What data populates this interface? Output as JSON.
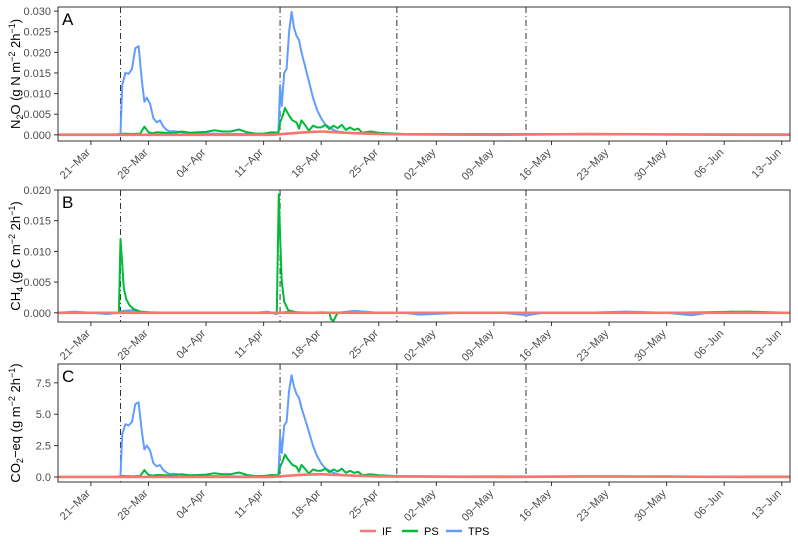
{
  "chart_data": [
    {
      "type": "line",
      "panel_label": "A",
      "ylabel_parts": [
        "N",
        "2",
        "O (g N m",
        "−2",
        " 2h",
        "−1",
        ")"
      ],
      "ylim": [
        -0.0015,
        0.031
      ],
      "yticks": [
        "0.000",
        "0.005",
        "0.010",
        "0.015",
        "0.020",
        "0.025",
        "0.030"
      ],
      "ytick_values": [
        0,
        0.005,
        0.01,
        0.015,
        0.02,
        0.025,
        0.03
      ],
      "xlim_days": [
        -4,
        85
      ],
      "xticks": [
        "21−Mar",
        "28−Mar",
        "04−Apr",
        "11−Apr",
        "18−Apr",
        "25−Apr",
        "02−May",
        "09−May",
        "16−May",
        "23−May",
        "30−May",
        "06−Jun",
        "13−Jun"
      ],
      "vlines_days": [
        3.6,
        23.0,
        37.2,
        52.9
      ],
      "series": [
        {
          "name": "TPS",
          "color": "#619CFF",
          "x": [
            3.6,
            3.8,
            4.2,
            4.6,
            5,
            5.4,
            5.8,
            6.2,
            6.5,
            6.8,
            7.2,
            7.6,
            8.0,
            8.4,
            8.8,
            9.2,
            9.6,
            10,
            11,
            12,
            13,
            14,
            15,
            16,
            17,
            18,
            19,
            20,
            21,
            22,
            22.8,
            23.0,
            23.2,
            23.5,
            23.8,
            24.1,
            24.4,
            24.7,
            25.0,
            25.3,
            25.6,
            26.0,
            26.5,
            27,
            27.5,
            28,
            28.5,
            29,
            29.5,
            30,
            31,
            32,
            33,
            34,
            35,
            36,
            37,
            38,
            40,
            45,
            50,
            55,
            60,
            65,
            70,
            75,
            80,
            85
          ],
          "y": [
            0.0002,
            0.012,
            0.015,
            0.0148,
            0.016,
            0.021,
            0.0215,
            0.013,
            0.008,
            0.009,
            0.0075,
            0.004,
            0.003,
            0.0035,
            0.002,
            0.0012,
            0.0008,
            0.0009,
            0.0006,
            0.0004,
            0.0003,
            0.0003,
            0.0003,
            0.0002,
            0.0002,
            0.0002,
            0.0002,
            0.0002,
            0.0002,
            0.0002,
            0.0003,
            0.012,
            0.007,
            0.015,
            0.016,
            0.025,
            0.0298,
            0.026,
            0.024,
            0.023,
            0.02,
            0.017,
            0.013,
            0.009,
            0.006,
            0.004,
            0.0025,
            0.0018,
            0.0012,
            0.0008,
            0.0005,
            0.0004,
            0.0004,
            0.0003,
            0.0003,
            0.0002,
            0.0002,
            0.0002,
            0.0002,
            0.0002,
            0.0002,
            0.0002,
            0.0002,
            0.0002,
            0.0001,
            0.0001,
            0.0001,
            0.0001
          ]
        },
        {
          "name": "PS",
          "color": "#00BA38",
          "x": [
            -4,
            3,
            3.6,
            4,
            5,
            6,
            6.5,
            7,
            7.5,
            8,
            9,
            10,
            11,
            12,
            13,
            14,
            15,
            16,
            17,
            18,
            19,
            20,
            21,
            22,
            22.8,
            23.0,
            23.3,
            23.6,
            24,
            24.5,
            25,
            25.3,
            25.6,
            26,
            26.5,
            27,
            27.5,
            28,
            28.5,
            29,
            29.5,
            30,
            30.5,
            31,
            31.5,
            32,
            32.5,
            33,
            34,
            35,
            36,
            38,
            40,
            50,
            60,
            70,
            85
          ],
          "y": [
            0.0001,
            0.0001,
            0.0002,
            0.0003,
            0.0002,
            0.0003,
            0.002,
            0.0006,
            0.0004,
            0.0006,
            0.0005,
            0.0004,
            0.0008,
            0.0005,
            0.0006,
            0.0007,
            0.0011,
            0.0008,
            0.0008,
            0.0013,
            0.0006,
            0.0003,
            0.0003,
            0.0006,
            0.0005,
            0.003,
            0.0045,
            0.0065,
            0.005,
            0.0035,
            0.003,
            0.0015,
            0.0035,
            0.0025,
            0.001,
            0.0022,
            0.0018,
            0.0018,
            0.0024,
            0.0014,
            0.0022,
            0.0016,
            0.0024,
            0.0012,
            0.0018,
            0.0012,
            0.0015,
            0.0005,
            0.0008,
            0.0005,
            0.0004,
            0.0002,
            0.0002,
            0.0001,
            0.0001,
            0.0001,
            0.0001
          ]
        },
        {
          "name": "IF",
          "color": "#F8766D",
          "x": [
            -4,
            0,
            5,
            10,
            15,
            20,
            22,
            24,
            26,
            28,
            30,
            32,
            35,
            40,
            50,
            60,
            70,
            80,
            85
          ],
          "y": [
            0.0,
            0.0,
            0.0,
            0.0,
            0.0,
            0.0,
            0.0,
            0.0003,
            0.0006,
            0.0008,
            0.0006,
            0.0004,
            0.0002,
            0.0001,
            0.0,
            0.0002,
            0.0001,
            0.0,
            0.0
          ]
        }
      ]
    },
    {
      "type": "line",
      "panel_label": "B",
      "ylabel_parts": [
        "CH",
        "4",
        " (g C m",
        "−2",
        " 2h",
        "−1",
        ")"
      ],
      "ylim": [
        -0.0015,
        0.02
      ],
      "yticks": [
        "0.000",
        "0.005",
        "0.010",
        "0.015",
        "0.020"
      ],
      "ytick_values": [
        0,
        0.005,
        0.01,
        0.015,
        0.02
      ],
      "xlim_days": [
        -4,
        85
      ],
      "xticks": [
        "21−Mar",
        "28−Mar",
        "04−Apr",
        "11−Apr",
        "18−Apr",
        "25−Apr",
        "02−May",
        "09−May",
        "16−May",
        "23−May",
        "30−May",
        "06−Jun",
        "13−Jun"
      ],
      "vlines_days": [
        3.6,
        23.0,
        37.2,
        52.9
      ],
      "series": [
        {
          "name": "TPS",
          "color": "#619CFF",
          "x": [
            -4,
            -2,
            0,
            2,
            3.4,
            3.6,
            4,
            5,
            6,
            7,
            8,
            10,
            15,
            20,
            21.5,
            22.5,
            23,
            24,
            26,
            28,
            30,
            32,
            35,
            38,
            40,
            45,
            50,
            53,
            55,
            60,
            65,
            70,
            73,
            75,
            78,
            80,
            85
          ],
          "y": [
            0.0,
            0.0002,
            0.0,
            -0.0002,
            0.0,
            0.0002,
            0.0003,
            0.0004,
            0.0002,
            0.0001,
            0.0,
            0.0,
            0.0,
            0.0,
            0.0002,
            -0.0002,
            0.0,
            0.0002,
            0.0,
            0.0001,
            0.0,
            0.0003,
            0.0,
            0.0,
            -0.0003,
            0.0,
            0.0,
            -0.0004,
            0.0,
            0.0,
            0.0002,
            0.0,
            -0.0004,
            0.0,
            0.0002,
            0.0,
            0.0
          ]
        },
        {
          "name": "PS",
          "color": "#00BA38",
          "x": [
            -4,
            3,
            3.4,
            3.6,
            3.8,
            4.0,
            4.3,
            4.7,
            5.2,
            6,
            7,
            10,
            15,
            20,
            22.6,
            22.85,
            23.0,
            23.2,
            23.5,
            24,
            25,
            28,
            29,
            29.2,
            29.5,
            30,
            40,
            50,
            70,
            80,
            85
          ],
          "y": [
            0.0,
            0.0,
            0.0,
            0.012,
            0.008,
            0.004,
            0.0022,
            0.0012,
            0.0006,
            0.0002,
            0.0001,
            0.0,
            0.0,
            0.0,
            0.0,
            0.0193,
            0.0125,
            0.0052,
            0.0018,
            0.0004,
            0.0001,
            0.0,
            0.0,
            -0.0011,
            -0.0013,
            0.0,
            0.0,
            0.0,
            0.0,
            0.0002,
            0.0
          ]
        },
        {
          "name": "IF",
          "color": "#F8766D",
          "x": [
            -4,
            10,
            20,
            30,
            40,
            50,
            60,
            70,
            80,
            85
          ],
          "y": [
            0.0,
            0.0,
            0.0,
            0.0,
            0.0,
            0.0,
            0.0,
            0.0,
            0.0,
            0.0
          ]
        }
      ]
    },
    {
      "type": "line",
      "panel_label": "C",
      "ylabel_parts": [
        "CO",
        "2",
        "−eq (g m",
        "−2",
        " 2h",
        "−1",
        ")"
      ],
      "ylim": [
        -0.4,
        9.0
      ],
      "yticks": [
        "0.0",
        "2.5",
        "5.0",
        "7.5"
      ],
      "ytick_values": [
        0,
        2.5,
        5,
        7.5
      ],
      "xlim_days": [
        -4,
        85
      ],
      "xticks": [
        "21−Mar",
        "28−Mar",
        "04−Apr",
        "11−Apr",
        "18−Apr",
        "25−Apr",
        "02−May",
        "09−May",
        "16−May",
        "23−May",
        "30−May",
        "06−Jun",
        "13−Jun"
      ],
      "vlines_days": [
        3.6,
        23.0,
        37.2,
        52.9
      ],
      "series": [
        {
          "name": "TPS",
          "color": "#619CFF",
          "x": [
            3.6,
            3.8,
            4.2,
            4.6,
            5,
            5.4,
            5.8,
            6.2,
            6.5,
            6.8,
            7.2,
            7.6,
            8.0,
            8.4,
            8.8,
            9.2,
            9.6,
            10,
            11,
            12,
            13,
            14,
            15,
            16,
            17,
            18,
            19,
            20,
            21,
            22,
            22.8,
            23.0,
            23.2,
            23.5,
            23.8,
            24.1,
            24.4,
            24.7,
            25.0,
            25.3,
            25.6,
            26.0,
            26.5,
            27,
            27.5,
            28,
            28.5,
            29,
            29.5,
            30,
            31,
            32,
            33,
            34,
            35,
            36,
            37,
            38,
            40,
            45,
            50,
            55,
            60,
            65,
            70,
            75,
            80,
            85
          ],
          "y": [
            0.05,
            3.4,
            4.2,
            4.1,
            4.4,
            5.8,
            5.95,
            3.6,
            2.2,
            2.5,
            2.1,
            1.1,
            0.85,
            0.95,
            0.55,
            0.35,
            0.22,
            0.25,
            0.17,
            0.11,
            0.08,
            0.08,
            0.08,
            0.06,
            0.06,
            0.05,
            0.05,
            0.05,
            0.05,
            0.05,
            0.08,
            3.3,
            1.9,
            4.1,
            4.4,
            6.9,
            8.1,
            7.2,
            6.6,
            6.3,
            5.5,
            4.7,
            3.6,
            2.5,
            1.65,
            1.1,
            0.7,
            0.5,
            0.33,
            0.22,
            0.14,
            0.11,
            0.11,
            0.08,
            0.08,
            0.05,
            0.05,
            0.05,
            0.05,
            0.05,
            0.05,
            0.05,
            0.05,
            0.05,
            0.03,
            0.03,
            0.03,
            0.03
          ]
        },
        {
          "name": "PS",
          "color": "#00BA38",
          "x": [
            -4,
            3,
            3.6,
            4,
            5,
            6,
            6.5,
            7,
            7.5,
            8,
            9,
            10,
            11,
            12,
            13,
            14,
            15,
            16,
            17,
            18,
            19,
            20,
            21,
            22,
            22.8,
            23.0,
            23.3,
            23.6,
            24,
            24.5,
            25,
            25.3,
            25.6,
            26,
            26.5,
            27,
            27.5,
            28,
            28.5,
            29,
            29.5,
            30,
            30.5,
            31,
            31.5,
            32,
            32.5,
            33,
            34,
            35,
            36,
            38,
            40,
            50,
            60,
            70,
            85
          ],
          "y": [
            0.02,
            0.02,
            0.05,
            0.08,
            0.05,
            0.08,
            0.55,
            0.16,
            0.11,
            0.16,
            0.14,
            0.11,
            0.22,
            0.14,
            0.16,
            0.19,
            0.3,
            0.22,
            0.22,
            0.36,
            0.16,
            0.08,
            0.08,
            0.16,
            0.14,
            0.82,
            1.23,
            1.78,
            1.37,
            0.96,
            0.82,
            0.41,
            0.96,
            0.68,
            0.27,
            0.6,
            0.49,
            0.49,
            0.66,
            0.38,
            0.6,
            0.44,
            0.66,
            0.33,
            0.49,
            0.33,
            0.41,
            0.14,
            0.22,
            0.14,
            0.11,
            0.05,
            0.05,
            0.03,
            0.03,
            0.03,
            0.03
          ]
        },
        {
          "name": "IF",
          "color": "#F8766D",
          "x": [
            -4,
            0,
            5,
            10,
            15,
            20,
            22,
            24,
            26,
            28,
            30,
            32,
            35,
            40,
            50,
            60,
            70,
            80,
            85
          ],
          "y": [
            0.0,
            0.0,
            0.0,
            0.0,
            0.0,
            0.0,
            0.0,
            0.1,
            0.18,
            0.22,
            0.16,
            0.1,
            0.05,
            0.03,
            0.0,
            0.05,
            0.03,
            0.0,
            0.0
          ]
        }
      ]
    }
  ],
  "legend": {
    "entries": [
      {
        "label": "IF",
        "color": "#F8766D"
      },
      {
        "label": "PS",
        "color": "#00BA38"
      },
      {
        "label": "TPS",
        "color": "#619CFF"
      }
    ]
  }
}
